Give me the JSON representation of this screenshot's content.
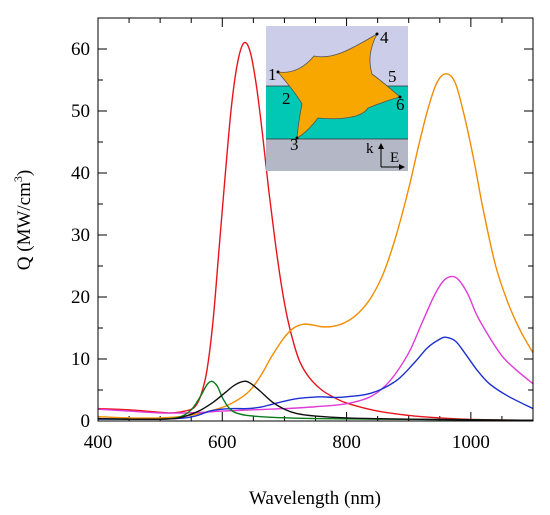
{
  "chart_data": {
    "type": "line",
    "xlabel": "Wavelength (nm)",
    "ylabel_main": "Q (MW/cm",
    "ylabel_sup": "3",
    "ylabel_close": ")",
    "xlim": [
      400,
      1100
    ],
    "ylim": [
      0,
      65
    ],
    "xticks": [
      400,
      600,
      800,
      1000
    ],
    "yticks": [
      0,
      10,
      20,
      30,
      40,
      50,
      60
    ],
    "x_minor_step": 50,
    "y_minor_step": 5,
    "series": [
      {
        "color": "#e8141c",
        "points": [
          [
            400,
            2
          ],
          [
            450,
            1.8
          ],
          [
            500,
            1.4
          ],
          [
            520,
            1.3
          ],
          [
            540,
            1.6
          ],
          [
            555,
            2.2
          ],
          [
            565,
            4
          ],
          [
            575,
            8
          ],
          [
            585,
            16
          ],
          [
            595,
            28
          ],
          [
            605,
            40
          ],
          [
            615,
            51
          ],
          [
            625,
            58
          ],
          [
            635,
            61
          ],
          [
            645,
            59.5
          ],
          [
            655,
            54
          ],
          [
            665,
            46
          ],
          [
            675,
            37
          ],
          [
            685,
            29
          ],
          [
            695,
            22
          ],
          [
            705,
            16.5
          ],
          [
            715,
            12.5
          ],
          [
            725,
            9.5
          ],
          [
            740,
            7
          ],
          [
            760,
            5
          ],
          [
            780,
            3.8
          ],
          [
            800,
            2.9
          ],
          [
            850,
            1.6
          ],
          [
            900,
            0.9
          ],
          [
            950,
            0.5
          ],
          [
            1000,
            0.25
          ],
          [
            1100,
            0.1
          ]
        ]
      },
      {
        "color": "#f28c00",
        "points": [
          [
            400,
            0.7
          ],
          [
            450,
            0.5
          ],
          [
            500,
            0.5
          ],
          [
            540,
            0.8
          ],
          [
            580,
            1.6
          ],
          [
            610,
            2.6
          ],
          [
            640,
            4.5
          ],
          [
            660,
            7
          ],
          [
            680,
            10.5
          ],
          [
            700,
            13.5
          ],
          [
            715,
            15
          ],
          [
            730,
            15.6
          ],
          [
            745,
            15.5
          ],
          [
            760,
            15.2
          ],
          [
            780,
            15.3
          ],
          [
            800,
            16
          ],
          [
            820,
            17.5
          ],
          [
            840,
            20
          ],
          [
            860,
            24
          ],
          [
            880,
            30
          ],
          [
            900,
            37.5
          ],
          [
            915,
            44
          ],
          [
            930,
            50
          ],
          [
            945,
            54.5
          ],
          [
            960,
            56
          ],
          [
            975,
            54.5
          ],
          [
            990,
            49
          ],
          [
            1005,
            42
          ],
          [
            1020,
            34
          ],
          [
            1040,
            25
          ],
          [
            1060,
            19
          ],
          [
            1080,
            14.5
          ],
          [
            1100,
            11
          ]
        ]
      },
      {
        "color": "#e03ad8",
        "points": [
          [
            400,
            1.9
          ],
          [
            450,
            1.6
          ],
          [
            500,
            1.3
          ],
          [
            540,
            1.3
          ],
          [
            570,
            1.4
          ],
          [
            600,
            1.6
          ],
          [
            650,
            1.8
          ],
          [
            700,
            2
          ],
          [
            750,
            2.3
          ],
          [
            800,
            2.8
          ],
          [
            840,
            4
          ],
          [
            870,
            6.5
          ],
          [
            900,
            11
          ],
          [
            920,
            15.5
          ],
          [
            940,
            20
          ],
          [
            955,
            22.5
          ],
          [
            968,
            23.3
          ],
          [
            980,
            22.8
          ],
          [
            995,
            20.5
          ],
          [
            1010,
            17
          ],
          [
            1030,
            13.5
          ],
          [
            1050,
            10.5
          ],
          [
            1070,
            8.5
          ],
          [
            1100,
            6
          ]
        ]
      },
      {
        "color": "#1c2fd0",
        "points": [
          [
            400,
            0.3
          ],
          [
            450,
            0.3
          ],
          [
            500,
            0.3
          ],
          [
            540,
            0.5
          ],
          [
            560,
            0.9
          ],
          [
            580,
            1.6
          ],
          [
            600,
            1.9
          ],
          [
            620,
            2
          ],
          [
            640,
            2
          ],
          [
            660,
            2.2
          ],
          [
            680,
            2.7
          ],
          [
            700,
            3.2
          ],
          [
            720,
            3.6
          ],
          [
            740,
            3.8
          ],
          [
            760,
            3.9
          ],
          [
            780,
            3.8
          ],
          [
            800,
            3.9
          ],
          [
            840,
            4.5
          ],
          [
            880,
            6.5
          ],
          [
            910,
            9.5
          ],
          [
            930,
            11.8
          ],
          [
            950,
            13.2
          ],
          [
            960,
            13.5
          ],
          [
            975,
            12.9
          ],
          [
            990,
            11
          ],
          [
            1010,
            8.2
          ],
          [
            1030,
            6
          ],
          [
            1060,
            4
          ],
          [
            1100,
            2
          ]
        ]
      },
      {
        "color": "#0a7a1a",
        "points": [
          [
            400,
            0.4
          ],
          [
            450,
            0.3
          ],
          [
            500,
            0.3
          ],
          [
            530,
            0.6
          ],
          [
            550,
            1.8
          ],
          [
            565,
            4
          ],
          [
            575,
            5.8
          ],
          [
            583,
            6.4
          ],
          [
            592,
            5.6
          ],
          [
            600,
            3.8
          ],
          [
            610,
            2.2
          ],
          [
            620,
            1.4
          ],
          [
            640,
            0.9
          ],
          [
            680,
            0.6
          ],
          [
            750,
            0.4
          ],
          [
            850,
            0.3
          ],
          [
            1000,
            0.2
          ],
          [
            1100,
            0.1
          ]
        ]
      },
      {
        "color": "#111111",
        "points": [
          [
            400,
            0.4
          ],
          [
            450,
            0.3
          ],
          [
            500,
            0.3
          ],
          [
            530,
            0.5
          ],
          [
            560,
            1.5
          ],
          [
            585,
            3
          ],
          [
            605,
            4.6
          ],
          [
            620,
            5.8
          ],
          [
            635,
            6.4
          ],
          [
            645,
            6.1
          ],
          [
            660,
            4.9
          ],
          [
            680,
            3.1
          ],
          [
            700,
            1.9
          ],
          [
            720,
            1.2
          ],
          [
            750,
            0.8
          ],
          [
            800,
            0.5
          ],
          [
            900,
            0.3
          ],
          [
            1100,
            0.1
          ]
        ]
      }
    ],
    "inset_labels": [
      {
        "text": "1",
        "color": "#111111"
      },
      {
        "text": "2",
        "color": "#e8141c"
      },
      {
        "text": "3",
        "color": "#1c2fd0"
      },
      {
        "text": "4",
        "color": "#0a7a1a"
      },
      {
        "text": "5",
        "color": "#e03ad8"
      },
      {
        "text": "6",
        "color": "#f28c00"
      }
    ],
    "inset_k": "k",
    "inset_e": "E",
    "colors": {
      "background_top": "#cccde8",
      "layer_middle": "#00c8b4",
      "substrate": "#b4b8c6",
      "particle": "#f7a700"
    }
  }
}
